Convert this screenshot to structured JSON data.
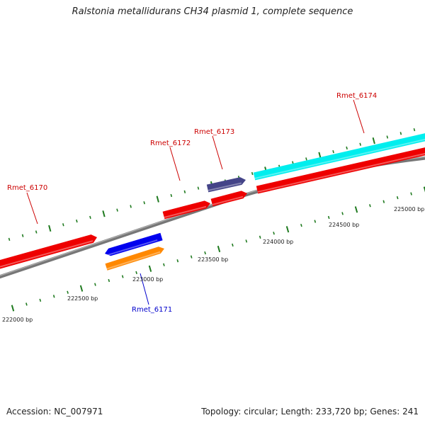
{
  "title": "Ralstonia metallidurans CH34 plasmid 1, complete sequence",
  "footer": {
    "accession": "Accession: NC_007971",
    "summary": "Topology: circular; Length: 233,720 bp; Genes: 241"
  },
  "colors": {
    "backbone": "#888888",
    "tick": "#1f7a1f",
    "forward_label": "#cc0000",
    "reverse_label": "#0000cc",
    "gene_red": "#ee0000",
    "gene_blue": "#0000ee",
    "gene_orange": "#ff8800",
    "gene_purple": "#444488",
    "gene_cyan": "#00eeee"
  },
  "scale_labels": [
    "222000 bp",
    "222500 bp",
    "223000 bp",
    "223500 bp",
    "224000 bp",
    "224500 bp",
    "225000 bp"
  ],
  "gene_labels": [
    {
      "text": "Rmet_6170",
      "strand": "forward"
    },
    {
      "text": "Rmet_6171",
      "strand": "reverse"
    },
    {
      "text": "Rmet_6172",
      "strand": "forward"
    },
    {
      "text": "Rmet_6173",
      "strand": "forward"
    },
    {
      "text": "Rmet_6174",
      "strand": "forward"
    }
  ]
}
